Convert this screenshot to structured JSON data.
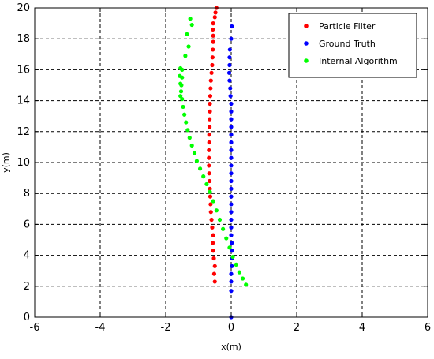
{
  "chart_data": {
    "type": "scatter",
    "xlabel": "x(m)",
    "ylabel": "y(m)",
    "xlim": [
      -6,
      6
    ],
    "ylim": [
      0,
      20
    ],
    "xticks": [
      "-6",
      "-4",
      "-2",
      "0",
      "2",
      "4",
      "6"
    ],
    "yticks": [
      "0",
      "2",
      "4",
      "6",
      "8",
      "10",
      "12",
      "14",
      "16",
      "18",
      "20"
    ],
    "grid": true,
    "legend_position": "top-right",
    "series": [
      {
        "name": "Particle Filter",
        "color": "#ff0000",
        "x": [
          -0.5,
          -0.52,
          -0.5,
          -0.53,
          -0.55,
          -0.56,
          -0.55,
          -0.58,
          -0.6,
          -0.62,
          -0.63,
          -0.64,
          -0.65,
          -0.66,
          -0.67,
          -0.68,
          -0.68,
          -0.68,
          -0.67,
          -0.67,
          -0.66,
          -0.66,
          -0.65,
          -0.65,
          -0.64,
          -0.63,
          -0.62,
          -0.6,
          -0.58,
          -0.57,
          -0.56,
          -0.55,
          -0.55,
          -0.56,
          -0.55,
          -0.5,
          -0.48,
          -0.45
        ],
        "y": [
          2.3,
          2.8,
          3.3,
          3.8,
          4.3,
          4.8,
          5.3,
          5.8,
          6.3,
          6.8,
          7.3,
          7.8,
          8.3,
          8.8,
          9.3,
          9.8,
          10.3,
          10.8,
          11.3,
          11.8,
          12.3,
          12.8,
          13.3,
          13.8,
          14.3,
          14.8,
          15.3,
          15.8,
          16.3,
          16.8,
          17.3,
          17.8,
          18.2,
          18.6,
          19.0,
          19.4,
          19.7,
          20.0
        ]
      },
      {
        "name": "Ground Truth",
        "color": "#0000ff",
        "x": [
          0,
          0,
          0,
          0,
          0.02,
          0.03,
          0.03,
          0.02,
          0,
          0,
          0,
          0,
          0,
          0,
          0,
          0,
          0,
          0,
          0,
          0,
          0,
          0,
          0,
          0,
          0,
          0,
          -0.02,
          -0.03,
          -0.05,
          -0.06,
          -0.05,
          -0.05,
          -0.04,
          0,
          0.02
        ],
        "y": [
          0,
          1.7,
          2.3,
          2.8,
          3.3,
          3.8,
          4.3,
          4.8,
          5.3,
          5.8,
          6.3,
          6.8,
          7.3,
          7.8,
          8.3,
          8.8,
          9.3,
          9.8,
          10.3,
          10.8,
          11.3,
          11.8,
          12.3,
          12.8,
          13.3,
          13.8,
          14.3,
          14.8,
          15.3,
          15.8,
          16.3,
          16.8,
          17.3,
          18.0,
          18.8
        ]
      },
      {
        "name": "Internal Algorithm",
        "color": "#00ff00",
        "x": [
          0.45,
          0.35,
          0.25,
          0.15,
          0.05,
          -0.05,
          -0.15,
          -0.25,
          -0.35,
          -0.45,
          -0.55,
          -0.65,
          -0.75,
          -0.85,
          -0.95,
          -1.05,
          -1.12,
          -1.2,
          -1.27,
          -1.33,
          -1.38,
          -1.43,
          -1.47,
          -1.5,
          -1.53,
          -1.55,
          -1.57,
          -1.55,
          -1.5,
          -1.5,
          -1.52,
          -1.55,
          -1.4,
          -1.3,
          -1.35,
          -1.2,
          -1.25
        ],
        "y": [
          2.1,
          2.5,
          2.9,
          3.4,
          3.9,
          4.5,
          5.1,
          5.7,
          6.3,
          6.9,
          7.5,
          8.1,
          8.6,
          9.1,
          9.6,
          10.1,
          10.6,
          11.1,
          11.6,
          12.1,
          12.6,
          13.1,
          13.6,
          14.1,
          14.6,
          15.1,
          15.6,
          16.1,
          16.0,
          15.5,
          15.0,
          14.3,
          16.9,
          17.5,
          18.3,
          18.9,
          19.3
        ]
      }
    ]
  }
}
